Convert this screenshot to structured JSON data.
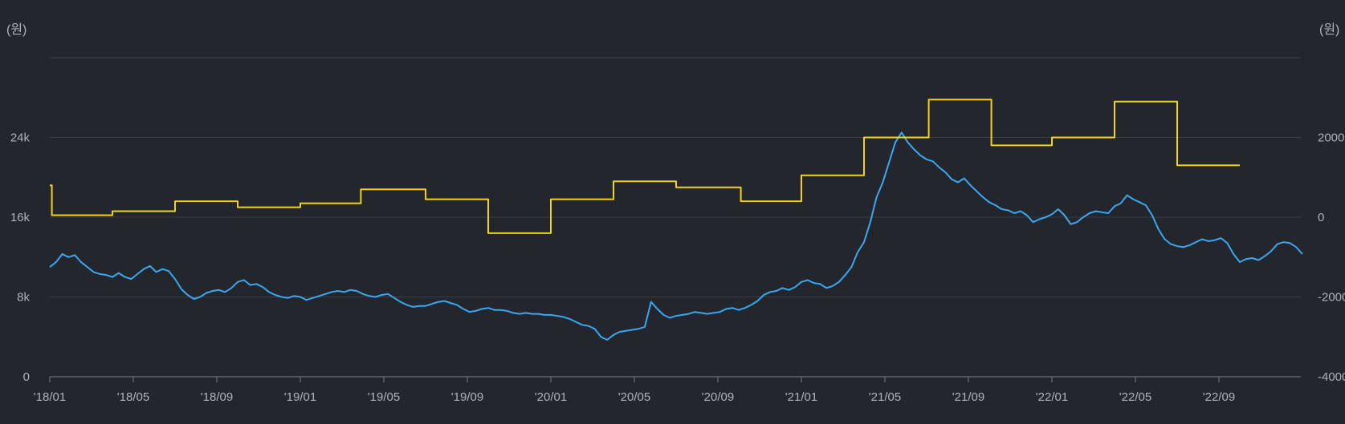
{
  "chart_data": {
    "type": "line",
    "y_unit_left": "(원)",
    "y_unit_right": "(원)",
    "x_ticks": [
      "'18/01",
      "'18/05",
      "'18/09",
      "'19/01",
      "'19/05",
      "'19/09",
      "'20/01",
      "'20/05",
      "'20/09",
      "'21/01",
      "'21/05",
      "'21/09",
      "'22/01",
      "'22/05",
      "'22/09"
    ],
    "y_left_ticks": [
      "0",
      "8k",
      "16k",
      "24k"
    ],
    "y_right_ticks": [
      "-4000",
      "-2000",
      "0",
      "2000"
    ],
    "y_left_range": [
      0,
      32000
    ],
    "y_right_range": [
      -4000,
      4000
    ],
    "x_range_months": [
      0,
      60
    ],
    "grid": true,
    "colors": {
      "series_left": "#3aa8f0",
      "series_right": "#f2d21a",
      "background": "#23262c"
    },
    "series": [
      {
        "axis": "left",
        "points": [
          [
            0,
            11000
          ],
          [
            0.3,
            11500
          ],
          [
            0.6,
            12300
          ],
          [
            0.9,
            12000
          ],
          [
            1.2,
            12200
          ],
          [
            1.5,
            11500
          ],
          [
            1.8,
            11000
          ],
          [
            2.1,
            10500
          ],
          [
            2.4,
            10300
          ],
          [
            2.7,
            10200
          ],
          [
            3.0,
            10000
          ],
          [
            3.3,
            10400
          ],
          [
            3.6,
            10000
          ],
          [
            3.9,
            9800
          ],
          [
            4.2,
            10300
          ],
          [
            4.5,
            10800
          ],
          [
            4.8,
            11100
          ],
          [
            5.1,
            10500
          ],
          [
            5.4,
            10800
          ],
          [
            5.7,
            10600
          ],
          [
            6.0,
            9800
          ],
          [
            6.3,
            8800
          ],
          [
            6.6,
            8200
          ],
          [
            6.9,
            7800
          ],
          [
            7.2,
            8000
          ],
          [
            7.5,
            8400
          ],
          [
            7.8,
            8600
          ],
          [
            8.1,
            8700
          ],
          [
            8.4,
            8500
          ],
          [
            8.7,
            8900
          ],
          [
            9.0,
            9500
          ],
          [
            9.3,
            9700
          ],
          [
            9.6,
            9200
          ],
          [
            9.9,
            9300
          ],
          [
            10.2,
            9000
          ],
          [
            10.5,
            8500
          ],
          [
            10.8,
            8200
          ],
          [
            11.1,
            8000
          ],
          [
            11.4,
            7900
          ],
          [
            11.7,
            8100
          ],
          [
            12.0,
            8000
          ],
          [
            12.3,
            7700
          ],
          [
            12.6,
            7900
          ],
          [
            12.9,
            8100
          ],
          [
            13.2,
            8300
          ],
          [
            13.5,
            8500
          ],
          [
            13.8,
            8600
          ],
          [
            14.1,
            8500
          ],
          [
            14.4,
            8700
          ],
          [
            14.7,
            8600
          ],
          [
            15.0,
            8300
          ],
          [
            15.3,
            8100
          ],
          [
            15.6,
            8000
          ],
          [
            15.9,
            8200
          ],
          [
            16.2,
            8300
          ],
          [
            16.5,
            7900
          ],
          [
            16.8,
            7500
          ],
          [
            17.1,
            7200
          ],
          [
            17.4,
            7000
          ],
          [
            17.7,
            7100
          ],
          [
            18.0,
            7100
          ],
          [
            18.3,
            7300
          ],
          [
            18.6,
            7500
          ],
          [
            18.9,
            7600
          ],
          [
            19.2,
            7400
          ],
          [
            19.5,
            7200
          ],
          [
            19.8,
            6800
          ],
          [
            20.1,
            6500
          ],
          [
            20.4,
            6600
          ],
          [
            20.7,
            6800
          ],
          [
            21.0,
            6900
          ],
          [
            21.3,
            6700
          ],
          [
            21.6,
            6700
          ],
          [
            21.9,
            6600
          ],
          [
            22.2,
            6400
          ],
          [
            22.5,
            6300
          ],
          [
            22.8,
            6400
          ],
          [
            23.1,
            6300
          ],
          [
            23.4,
            6300
          ],
          [
            23.7,
            6200
          ],
          [
            24.0,
            6200
          ],
          [
            24.3,
            6100
          ],
          [
            24.6,
            6000
          ],
          [
            24.9,
            5800
          ],
          [
            25.2,
            5500
          ],
          [
            25.5,
            5200
          ],
          [
            25.8,
            5100
          ],
          [
            26.1,
            4800
          ],
          [
            26.4,
            4000
          ],
          [
            26.7,
            3700
          ],
          [
            27.0,
            4200
          ],
          [
            27.3,
            4500
          ],
          [
            27.6,
            4600
          ],
          [
            27.9,
            4700
          ],
          [
            28.2,
            4800
          ],
          [
            28.5,
            5000
          ],
          [
            28.8,
            7500
          ],
          [
            29.1,
            6800
          ],
          [
            29.4,
            6200
          ],
          [
            29.7,
            5900
          ],
          [
            30.0,
            6100
          ],
          [
            30.3,
            6200
          ],
          [
            30.6,
            6300
          ],
          [
            30.9,
            6500
          ],
          [
            31.2,
            6400
          ],
          [
            31.5,
            6300
          ],
          [
            31.8,
            6400
          ],
          [
            32.1,
            6500
          ],
          [
            32.4,
            6800
          ],
          [
            32.7,
            6900
          ],
          [
            33.0,
            6700
          ],
          [
            33.3,
            6900
          ],
          [
            33.6,
            7200
          ],
          [
            33.9,
            7600
          ],
          [
            34.2,
            8200
          ],
          [
            34.5,
            8500
          ],
          [
            34.8,
            8600
          ],
          [
            35.1,
            8900
          ],
          [
            35.4,
            8700
          ],
          [
            35.7,
            9000
          ],
          [
            36.0,
            9500
          ],
          [
            36.3,
            9700
          ],
          [
            36.6,
            9400
          ],
          [
            36.9,
            9300
          ],
          [
            37.2,
            8900
          ],
          [
            37.5,
            9100
          ],
          [
            37.8,
            9500
          ],
          [
            38.1,
            10200
          ],
          [
            38.4,
            11000
          ],
          [
            38.7,
            12500
          ],
          [
            39.0,
            13500
          ],
          [
            39.3,
            15500
          ],
          [
            39.6,
            18000
          ],
          [
            39.9,
            19500
          ],
          [
            40.2,
            21500
          ],
          [
            40.5,
            23500
          ],
          [
            40.8,
            24500
          ],
          [
            41.1,
            23500
          ],
          [
            41.4,
            22800
          ],
          [
            41.7,
            22200
          ],
          [
            42.0,
            21800
          ],
          [
            42.3,
            21600
          ],
          [
            42.6,
            21000
          ],
          [
            42.9,
            20500
          ],
          [
            43.2,
            19800
          ],
          [
            43.5,
            19500
          ],
          [
            43.8,
            19900
          ],
          [
            44.1,
            19200
          ],
          [
            44.4,
            18600
          ],
          [
            44.7,
            18000
          ],
          [
            45.0,
            17500
          ],
          [
            45.3,
            17200
          ],
          [
            45.6,
            16800
          ],
          [
            45.9,
            16700
          ],
          [
            46.2,
            16400
          ],
          [
            46.5,
            16600
          ],
          [
            46.8,
            16200
          ],
          [
            47.1,
            15500
          ],
          [
            47.4,
            15800
          ],
          [
            47.7,
            16000
          ],
          [
            48.0,
            16300
          ],
          [
            48.3,
            16800
          ],
          [
            48.6,
            16200
          ],
          [
            48.9,
            15300
          ],
          [
            49.2,
            15500
          ],
          [
            49.5,
            16000
          ],
          [
            49.8,
            16400
          ],
          [
            50.1,
            16600
          ],
          [
            50.4,
            16500
          ],
          [
            50.7,
            16400
          ],
          [
            51.0,
            17100
          ],
          [
            51.3,
            17400
          ],
          [
            51.6,
            18200
          ],
          [
            51.9,
            17800
          ],
          [
            52.2,
            17500
          ],
          [
            52.5,
            17200
          ],
          [
            52.8,
            16200
          ],
          [
            53.1,
            14800
          ],
          [
            53.4,
            13800
          ],
          [
            53.7,
            13300
          ],
          [
            54.0,
            13100
          ],
          [
            54.3,
            13000
          ],
          [
            54.6,
            13200
          ],
          [
            54.9,
            13500
          ],
          [
            55.2,
            13800
          ],
          [
            55.5,
            13600
          ],
          [
            55.8,
            13700
          ],
          [
            56.1,
            13900
          ],
          [
            56.4,
            13400
          ],
          [
            56.7,
            12300
          ],
          [
            57.0,
            11500
          ],
          [
            57.3,
            11800
          ],
          [
            57.6,
            11900
          ],
          [
            57.9,
            11700
          ],
          [
            58.2,
            12100
          ],
          [
            58.5,
            12600
          ],
          [
            58.8,
            13300
          ],
          [
            59.1,
            13500
          ],
          [
            59.4,
            13400
          ],
          [
            59.7,
            13000
          ],
          [
            60.0,
            12300
          ]
        ]
      },
      {
        "axis": "right",
        "points": [
          [
            0,
            800
          ],
          [
            0.1,
            800
          ],
          [
            0.1,
            50
          ],
          [
            3.0,
            50
          ],
          [
            3.0,
            150
          ],
          [
            6.0,
            150
          ],
          [
            6.0,
            400
          ],
          [
            9.0,
            400
          ],
          [
            9.0,
            250
          ],
          [
            12.0,
            250
          ],
          [
            12.0,
            350
          ],
          [
            14.9,
            350
          ],
          [
            14.9,
            700
          ],
          [
            18.0,
            700
          ],
          [
            18.0,
            450
          ],
          [
            21.0,
            450
          ],
          [
            21.0,
            -400
          ],
          [
            24.0,
            -400
          ],
          [
            24.0,
            450
          ],
          [
            27.0,
            450
          ],
          [
            27.0,
            900
          ],
          [
            30.0,
            900
          ],
          [
            30.0,
            750
          ],
          [
            33.1,
            750
          ],
          [
            33.1,
            400
          ],
          [
            36.0,
            400
          ],
          [
            36.0,
            1050
          ],
          [
            39.0,
            1050
          ],
          [
            39.0,
            2000
          ],
          [
            42.1,
            2000
          ],
          [
            42.1,
            2950
          ],
          [
            45.1,
            2950
          ],
          [
            45.1,
            1800
          ],
          [
            48.0,
            1800
          ],
          [
            48.0,
            2000
          ],
          [
            51.0,
            2000
          ],
          [
            51.0,
            2900
          ],
          [
            54.0,
            2900
          ],
          [
            54.0,
            1300
          ],
          [
            57.0,
            1300
          ]
        ]
      }
    ]
  }
}
